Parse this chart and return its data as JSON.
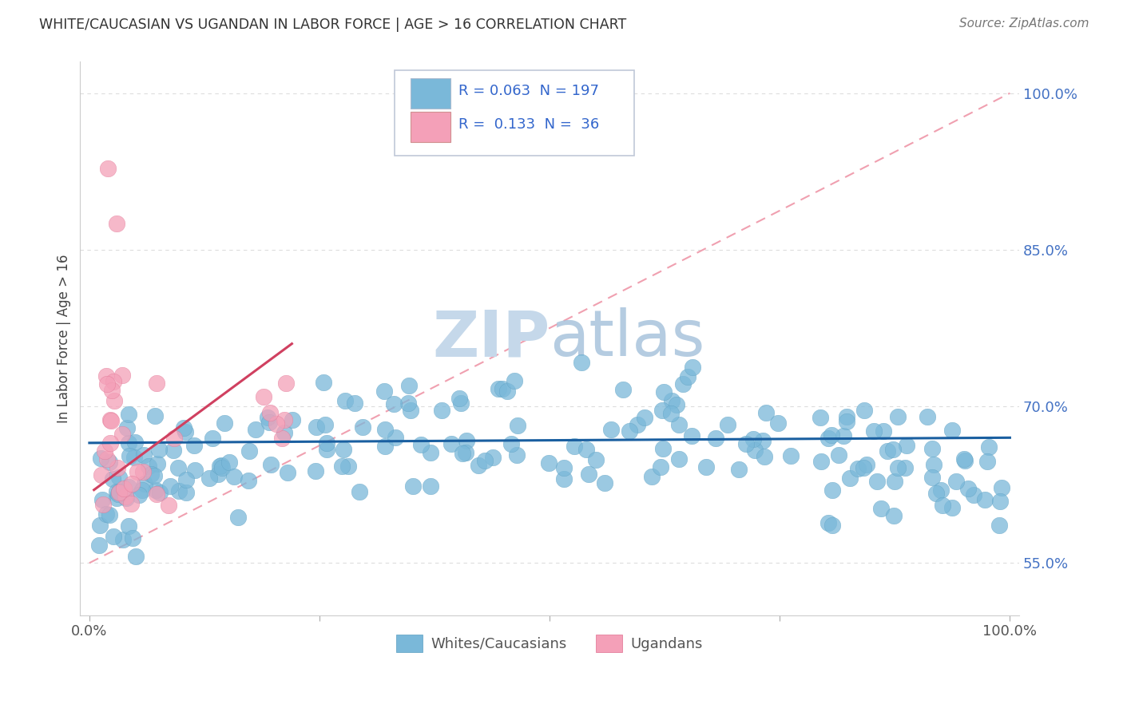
{
  "title": "WHITE/CAUCASIAN VS UGANDAN IN LABOR FORCE | AGE > 16 CORRELATION CHART",
  "source": "Source: ZipAtlas.com",
  "ylabel": "In Labor Force | Age > 16",
  "blue_color": "#7ab8d9",
  "blue_edge_color": "#5a9ec0",
  "pink_color": "#f4a0b8",
  "pink_edge_color": "#e07090",
  "blue_line_color": "#1a5fa0",
  "pink_line_color": "#d04060",
  "diag_line_color": "#f0a0b0",
  "R_blue": 0.063,
  "N_blue": 197,
  "R_pink": 0.133,
  "N_pink": 36,
  "ylim_low": 0.5,
  "ylim_high": 1.03,
  "xlim_low": -0.01,
  "xlim_high": 1.01,
  "yticks": [
    0.55,
    0.7,
    0.85,
    1.0
  ],
  "ytick_labels": [
    "55.0%",
    "70.0%",
    "85.0%",
    "100.0%"
  ],
  "grid_color": "#dddddd",
  "watermark_zip_color": "#c8d8e8",
  "watermark_atlas_color": "#b8cce0",
  "legend_entry1": "Whites/Caucasians",
  "legend_entry2": "Ugandans"
}
